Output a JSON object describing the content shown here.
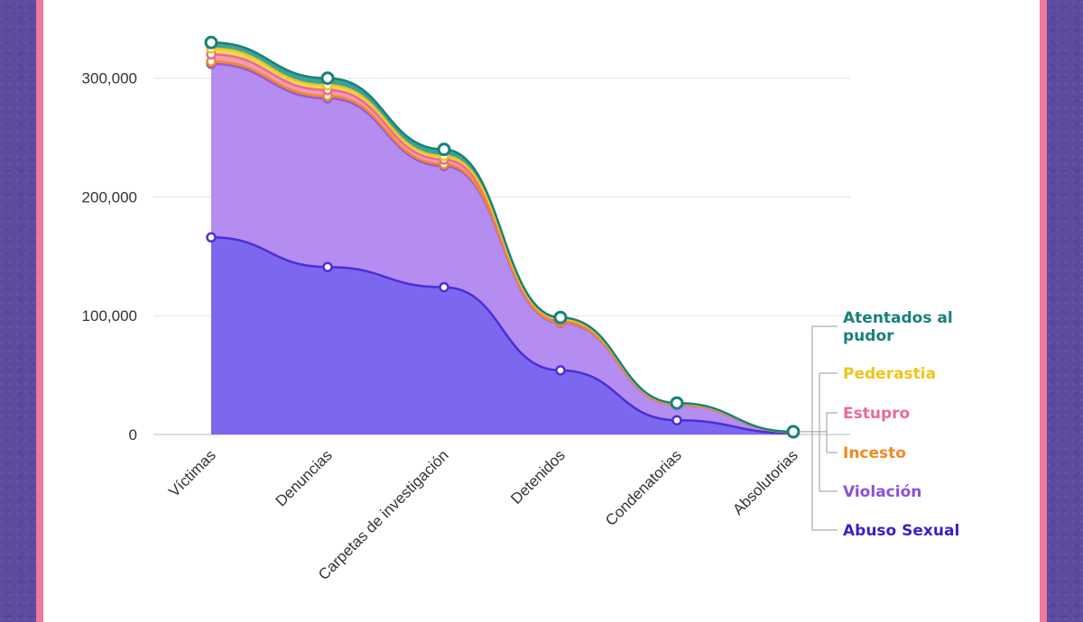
{
  "chart_data": {
    "type": "area",
    "stacked": true,
    "categories": [
      "Víctimas",
      "Denuncias",
      "Carpetas de investigación",
      "Detenidos",
      "Condenatorias",
      "Absolutorias"
    ],
    "ylim": [
      0,
      340000
    ],
    "yticks": [
      0,
      100000,
      200000,
      300000
    ],
    "ytick_labels": [
      "0",
      "100,000",
      "200,000",
      "300,000"
    ],
    "grid": true,
    "legend_position": "right",
    "series": [
      {
        "name": "Abuso Sexual",
        "color": "#4b2fd6",
        "fill": "#7b68ee",
        "values": [
          166000,
          141000,
          124000,
          54000,
          12000,
          1000
        ]
      },
      {
        "name": "Violación",
        "color": "#9b59d9",
        "fill": "#b58cf0",
        "values": [
          146000,
          142000,
          102000,
          40000,
          13000,
          1000
        ]
      },
      {
        "name": "Incesto",
        "color": "#f08a20",
        "fill": "#f7a35c",
        "values": [
          2000,
          2000,
          1500,
          500,
          200,
          50
        ]
      },
      {
        "name": "Estupro",
        "color": "#e96b8e",
        "fill": "#f59ab2",
        "values": [
          6000,
          5000,
          4000,
          1500,
          500,
          100
        ]
      },
      {
        "name": "Pederastia",
        "color": "#f0c419",
        "fill": "#f7d55c",
        "values": [
          5000,
          4000,
          3000,
          1000,
          300,
          100
        ]
      },
      {
        "name": "Atentados al pudor",
        "color": "#17817a",
        "fill": "#3aa39a",
        "values": [
          5000,
          6000,
          5500,
          1500,
          500,
          100
        ]
      }
    ],
    "legend": [
      {
        "lines": [
          "Atentados al",
          "pudor"
        ],
        "color": "#17817a"
      },
      {
        "lines": [
          "Pederastia"
        ],
        "color": "#f0c419"
      },
      {
        "lines": [
          "Estupro"
        ],
        "color": "#e96b8e"
      },
      {
        "lines": [
          "Incesto"
        ],
        "color": "#f08a20"
      },
      {
        "lines": [
          "Violación"
        ],
        "color": "#8a52d8"
      },
      {
        "lines": [
          "Abuso Sexual"
        ],
        "color": "#3a1fc7"
      }
    ]
  }
}
